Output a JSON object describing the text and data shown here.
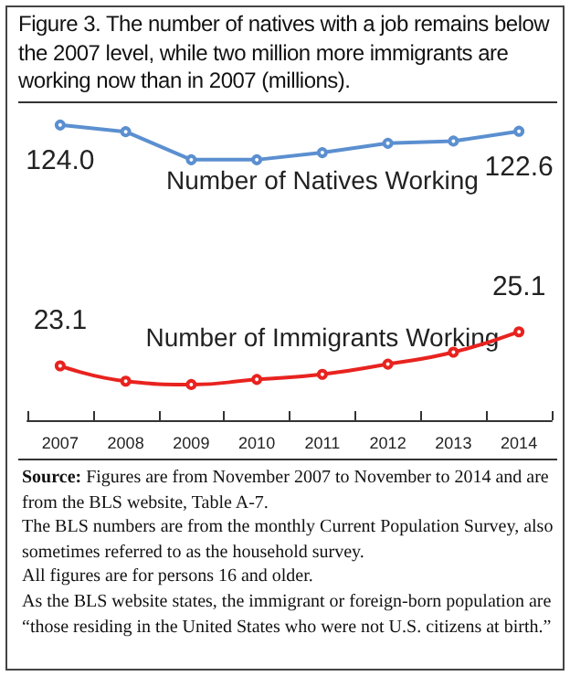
{
  "chart_data": {
    "type": "line",
    "title": "Figure 3. The number of natives with a job remains below the 2007 level, while two million more immigrants are working now than in 2007 (millions).",
    "categories": [
      "2007",
      "2008",
      "2009",
      "2010",
      "2011",
      "2012",
      "2013",
      "2014"
    ],
    "series": [
      {
        "name": "Number of Natives Working",
        "color": "#5b8fd0",
        "values": [
          124.0,
          122.5,
          116.2,
          116.2,
          117.8,
          119.9,
          120.4,
          122.6
        ],
        "value_labels": [
          "124.0",
          null,
          null,
          null,
          null,
          null,
          null,
          "122.6"
        ]
      },
      {
        "name": "Number of Immigrants Working",
        "color": "#e8231f",
        "axis": "y2",
        "values": [
          23.1,
          22.2,
          22.0,
          22.3,
          22.6,
          23.2,
          23.9,
          25.1
        ],
        "value_labels": [
          "23.1",
          null,
          null,
          null,
          null,
          null,
          null,
          "25.1"
        ]
      }
    ],
    "ylim": [
      57.7,
      129.1
    ],
    "y2lim": [
      19.9,
      38.6
    ],
    "tick_labels": "x",
    "grid": false,
    "legend": false,
    "marker": "circle",
    "line_style": "solid",
    "annotations": [
      "Source: Figures are from November 2007 to November to 2014 and are from the BLS website, Table A-7.",
      "The BLS numbers are from the monthly Current Population Survey, also sometimes referred to as the household survey.",
      "All figures are for persons 16 and older.",
      "As the BLS website states, the immigrant or foreign-born population are “those residing in the United States who were not U.S. citizens at birth.”"
    ]
  }
}
